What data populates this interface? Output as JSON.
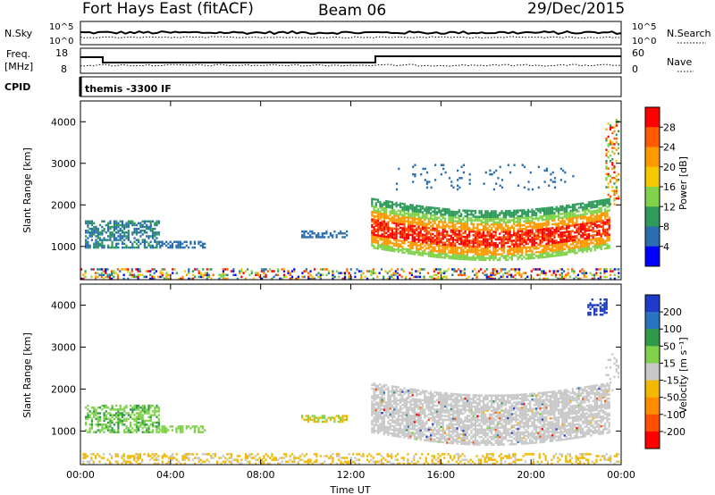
{
  "header": {
    "station": "Fort Hays East (fitACF)",
    "beam": "Beam 06",
    "date": "29/Dec/2015"
  },
  "status_panels": {
    "nsky_label": "N.Sky",
    "nsky_tick_top": "10^5",
    "nsky_tick_bottom": "10^0",
    "nsearch_label": "N.Search",
    "nsearch_tick_top": "10^5",
    "nsearch_tick_bottom": "10^0",
    "freq_label": "Freq.",
    "freq_unit": "[MHz]",
    "freq_tick_top": "18",
    "freq_tick_bottom": "8",
    "nave_label": "Nave",
    "nave_tick_top": "60",
    "nave_tick_bottom": "0",
    "cpid_label": "CPID",
    "cpid_value": "themis -3300 IF"
  },
  "chart_data": [
    {
      "type": "heatmap",
      "panel": "power",
      "ylabel": "Slant Range [km]",
      "ylim": [
        200,
        4500
      ],
      "xlim_hours": [
        0,
        24
      ],
      "y_ticks": [
        "1000",
        "2000",
        "3000",
        "4000"
      ],
      "colorbar_label": "Power [dB]",
      "colorbar_ticks": [
        "28",
        "24",
        "20",
        "16",
        "12",
        "8",
        "4"
      ],
      "colorbar_colors": [
        "#ff0000",
        "#ff5a00",
        "#ff9900",
        "#f5c800",
        "#7fd24a",
        "#2e9b5a",
        "#2a6eb0",
        "#0000ff"
      ]
    },
    {
      "type": "heatmap",
      "panel": "velocity",
      "ylabel": "Slant Range [km]",
      "ylim": [
        200,
        4500
      ],
      "xlim_hours": [
        0,
        24
      ],
      "y_ticks": [
        "1000",
        "2000",
        "3000",
        "4000"
      ],
      "colorbar_label": "Velocity [m s⁻¹]",
      "colorbar_ticks": [
        "200",
        "100",
        "50",
        "15",
        "-15",
        "-50",
        "-100",
        "-200"
      ],
      "colorbar_colors": [
        "#1e3cc8",
        "#2a73c0",
        "#2f9a4a",
        "#7fd24a",
        "#c8c8c8",
        "#f2b800",
        "#ff8c00",
        "#ff5000",
        "#ff0000"
      ]
    }
  ],
  "x_axis": {
    "label": "Time UT",
    "ticks": [
      "00:00",
      "04:00",
      "08:00",
      "12:00",
      "16:00",
      "20:00",
      "00:00"
    ]
  }
}
